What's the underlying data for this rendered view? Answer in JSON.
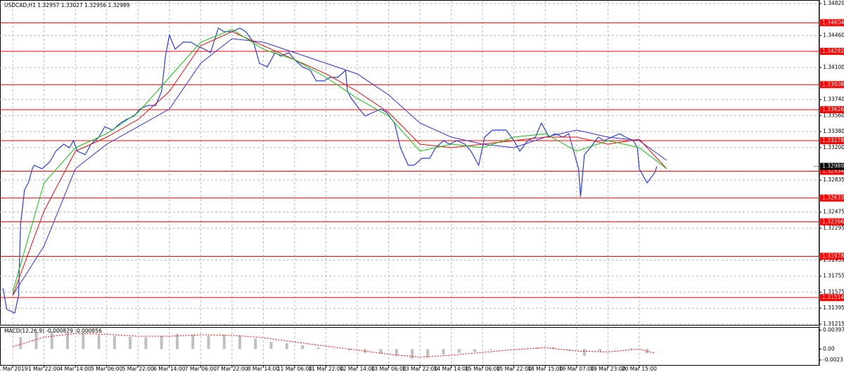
{
  "chart_data": [
    {
      "type": "line",
      "title": "USDCAD,H1 1.32957 1.33027 1.32956 1.32989",
      "xlim": [
        -6.5,
        412
      ],
      "ylim": [
        1.31215,
        1.3482
      ],
      "grid": true,
      "xticks": [
        {
          "value": 0,
          "label": "1 Mar 2019"
        },
        {
          "value": 16,
          "label": "1 Mar 22:00"
        },
        {
          "value": 32,
          "label": "4 Mar 14:00"
        },
        {
          "value": 48,
          "label": "5 Mar 06:00"
        },
        {
          "value": 64,
          "label": "5 Mar 22:00"
        },
        {
          "value": 80,
          "label": "6 Mar 14:00"
        },
        {
          "value": 96,
          "label": "7 Mar 06:00"
        },
        {
          "value": 112,
          "label": "7 Mar 22:00"
        },
        {
          "value": 128,
          "label": "8 Mar 14:00"
        },
        {
          "value": 144,
          "label": "11 Mar 06:00"
        },
        {
          "value": 160,
          "label": "11 Mar 22:00"
        },
        {
          "value": 176,
          "label": "12 Mar 14:00"
        },
        {
          "value": 192,
          "label": "13 Mar 06:00"
        },
        {
          "value": 208,
          "label": "13 Mar 22:00"
        },
        {
          "value": 224,
          "label": "14 Mar 14:00"
        },
        {
          "value": 240,
          "label": "15 Mar 06:00"
        },
        {
          "value": 256,
          "label": "15 Mar 22:00"
        },
        {
          "value": 272,
          "label": "18 Mar 15:00"
        },
        {
          "value": 288,
          "label": "19 Mar 07:00"
        },
        {
          "value": 304,
          "label": "19 Mar 23:00"
        },
        {
          "value": 320,
          "label": "20 Mar 15:00"
        }
      ],
      "yticks": [
        {
          "value": 1.3482,
          "label": "1.34820"
        },
        {
          "value": 1.3446,
          "label": "1.34460"
        },
        {
          "value": 1.341,
          "label": "1.34100"
        },
        {
          "value": 1.3374,
          "label": "1.33740"
        },
        {
          "value": 1.3356,
          "label": "1.33560"
        },
        {
          "value": 1.3338,
          "label": "1.33380"
        },
        {
          "value": 1.332,
          "label": "1.33200"
        },
        1.32835,
        1.32475,
        1.32295,
        1.31935,
        1.31755,
        1.31575,
        1.31395,
        1.31215
      ],
      "levels": {
        "color": "#ff0000",
        "values": [
          1.34604,
          1.34282,
          1.33908,
          1.33626,
          1.33278,
          1.32934,
          1.32633,
          1.32366,
          1.31978,
          1.31514
        ]
      },
      "current": 1.32989,
      "series": [
        {
          "color": "#2b3fd6",
          "width": 1.2,
          "x": [
            -5,
            -3,
            1,
            3,
            4,
            6,
            8,
            10,
            11,
            15,
            19,
            22,
            26,
            29,
            31,
            33,
            37,
            40,
            44,
            47,
            51,
            55,
            58,
            62,
            65,
            69,
            73,
            76,
            78,
            80,
            83,
            87,
            91,
            94,
            98,
            101,
            105,
            108,
            112,
            116,
            119,
            123,
            125,
            126,
            130,
            134,
            137,
            141,
            144,
            148,
            152,
            155,
            159,
            162,
            166,
            170,
            171,
            173,
            177,
            180,
            184,
            188,
            191,
            195,
            198,
            202,
            205,
            209,
            213,
            216,
            220,
            223,
            227,
            231,
            234,
            238,
            241,
            245,
            249,
            252,
            256,
            259,
            263,
            267,
            270,
            274,
            277,
            281,
            284,
            289,
            290,
            292,
            295,
            299,
            302,
            306,
            310,
            313,
            317,
            319,
            320,
            324,
            328,
            329
          ],
          "values": [
            1.31618,
            1.31381,
            1.31341,
            1.31539,
            1.3233,
            1.32725,
            1.32804,
            1.32962,
            1.33002,
            1.32962,
            1.33041,
            1.3316,
            1.33239,
            1.33199,
            1.33278,
            1.3316,
            1.3312,
            1.33239,
            1.33318,
            1.33436,
            1.33397,
            1.33476,
            1.33516,
            1.33555,
            1.33634,
            1.33674,
            1.33674,
            1.33832,
            1.34227,
            1.34464,
            1.34306,
            1.34385,
            1.34385,
            1.34346,
            1.34306,
            1.34267,
            1.34543,
            1.34504,
            1.34504,
            1.34543,
            1.34504,
            1.34385,
            1.34227,
            1.34148,
            1.34108,
            1.34267,
            1.34227,
            1.34267,
            1.34188,
            1.34108,
            1.34069,
            1.3395,
            1.3395,
            1.3399,
            1.3399,
            1.34069,
            1.33832,
            1.33753,
            1.33634,
            1.33555,
            1.33595,
            1.33634,
            1.33595,
            1.33476,
            1.33199,
            1.33002,
            1.33002,
            1.33081,
            1.33081,
            1.33199,
            1.33278,
            1.33239,
            1.33278,
            1.33239,
            1.3316,
            1.33002,
            1.33318,
            1.33397,
            1.33397,
            1.33397,
            1.33278,
            1.3316,
            1.33278,
            1.33318,
            1.33476,
            1.33318,
            1.33357,
            1.33318,
            1.33357,
            1.32962,
            1.32646,
            1.3312,
            1.33199,
            1.33318,
            1.33278,
            1.33318,
            1.33357,
            1.33318,
            1.33278,
            1.33199,
            1.32962,
            1.32804,
            1.32923,
            1.32989
          ]
        },
        {
          "color": "#3030e0",
          "width": 1,
          "x": [
            0,
            16,
            32,
            48,
            64,
            80,
            96,
            112,
            128,
            144,
            160,
            176,
            192,
            208,
            224,
            240,
            256,
            272,
            288,
            304,
            320,
            334
          ],
          "values": [
            1.3154,
            1.32093,
            1.32962,
            1.33239,
            1.33436,
            1.33634,
            1.34148,
            1.34425,
            1.34385,
            1.34267,
            1.34148,
            1.34029,
            1.33792,
            1.33476,
            1.33318,
            1.33239,
            1.33199,
            1.33318,
            1.33397,
            1.33318,
            1.33278,
            1.33057
          ]
        },
        {
          "color": "#e01010",
          "width": 1,
          "x": [
            0,
            16,
            32,
            48,
            64,
            80,
            96,
            112,
            128,
            144,
            160,
            176,
            192,
            208,
            224,
            240,
            256,
            272,
            288,
            304,
            320,
            334
          ],
          "values": [
            1.3154,
            1.32488,
            1.3316,
            1.33318,
            1.33516,
            1.33832,
            1.34346,
            1.34504,
            1.34346,
            1.34188,
            1.34029,
            1.33832,
            1.33595,
            1.33239,
            1.33199,
            1.33239,
            1.33278,
            1.33318,
            1.33318,
            1.33239,
            1.33294,
            1.32962
          ]
        },
        {
          "color": "#10c010",
          "width": 1,
          "x": [
            0,
            16,
            32,
            48,
            64,
            80,
            96,
            112,
            128,
            144,
            160,
            176,
            192,
            208,
            224,
            240,
            256,
            272,
            288,
            304,
            320,
            334
          ],
          "values": [
            1.3158,
            1.32804,
            1.33199,
            1.33357,
            1.33595,
            1.3399,
            1.34385,
            1.34528,
            1.34306,
            1.34188,
            1.3399,
            1.33753,
            1.33555,
            1.3316,
            1.33239,
            1.33199,
            1.33318,
            1.33357,
            1.3316,
            1.33278,
            1.33199,
            1.32962
          ]
        }
      ]
    },
    {
      "type": "bar",
      "title": "MACD(12,26,9) -0.000879 -0.000856",
      "xlim": [
        -6.5,
        412
      ],
      "ylim": [
        -0.0035,
        0.0045
      ],
      "yticks": [
        0.003973,
        {
          "value": 0,
          "label": "0.00"
        },
        -0.0023
      ],
      "series": [
        {
          "type": "bar",
          "color": "#c0c0c0",
          "x": [
            -4,
            4,
            12,
            20,
            28,
            36,
            44,
            52,
            60,
            68,
            76,
            84,
            92,
            100,
            108,
            116,
            124,
            132,
            140,
            148,
            156,
            164,
            172,
            180,
            188,
            196,
            204,
            212,
            220,
            228,
            236,
            244,
            252,
            260,
            268,
            276,
            284,
            292,
            300,
            308,
            316,
            324
          ],
          "values": [
            0.0,
            0.0025,
            0.0035,
            0.0037,
            0.0036,
            0.0033,
            0.003,
            0.0028,
            0.0026,
            0.0025,
            0.0028,
            0.0032,
            0.003,
            0.0028,
            0.003,
            0.0028,
            0.0022,
            0.0015,
            0.0012,
            0.0008,
            0.0003,
            0.0001,
            -0.0003,
            -0.0008,
            -0.001,
            -0.0015,
            -0.002,
            -0.0018,
            -0.0012,
            -0.0008,
            -0.0006,
            -0.0002,
            0.0001,
            0.0,
            0.0003,
            0.0004,
            -0.0002,
            -0.0014,
            -0.0005,
            0.0001,
            0.0002,
            -0.0009
          ]
        },
        {
          "type": "line",
          "color": "#ff0000",
          "x": [
            0,
            16,
            32,
            48,
            64,
            80,
            96,
            112,
            128,
            144,
            160,
            176,
            192,
            208,
            224,
            240,
            256,
            272,
            288,
            304,
            320,
            328
          ],
          "values": [
            0.0005,
            0.0025,
            0.0033,
            0.0031,
            0.0027,
            0.0027,
            0.003,
            0.0029,
            0.0024,
            0.0015,
            0.0006,
            -0.0002,
            -0.0011,
            -0.0017,
            -0.0013,
            -0.0007,
            -0.0001,
            0.0003,
            -0.0004,
            -0.0006,
            0.0,
            -0.0009
          ]
        }
      ]
    }
  ]
}
